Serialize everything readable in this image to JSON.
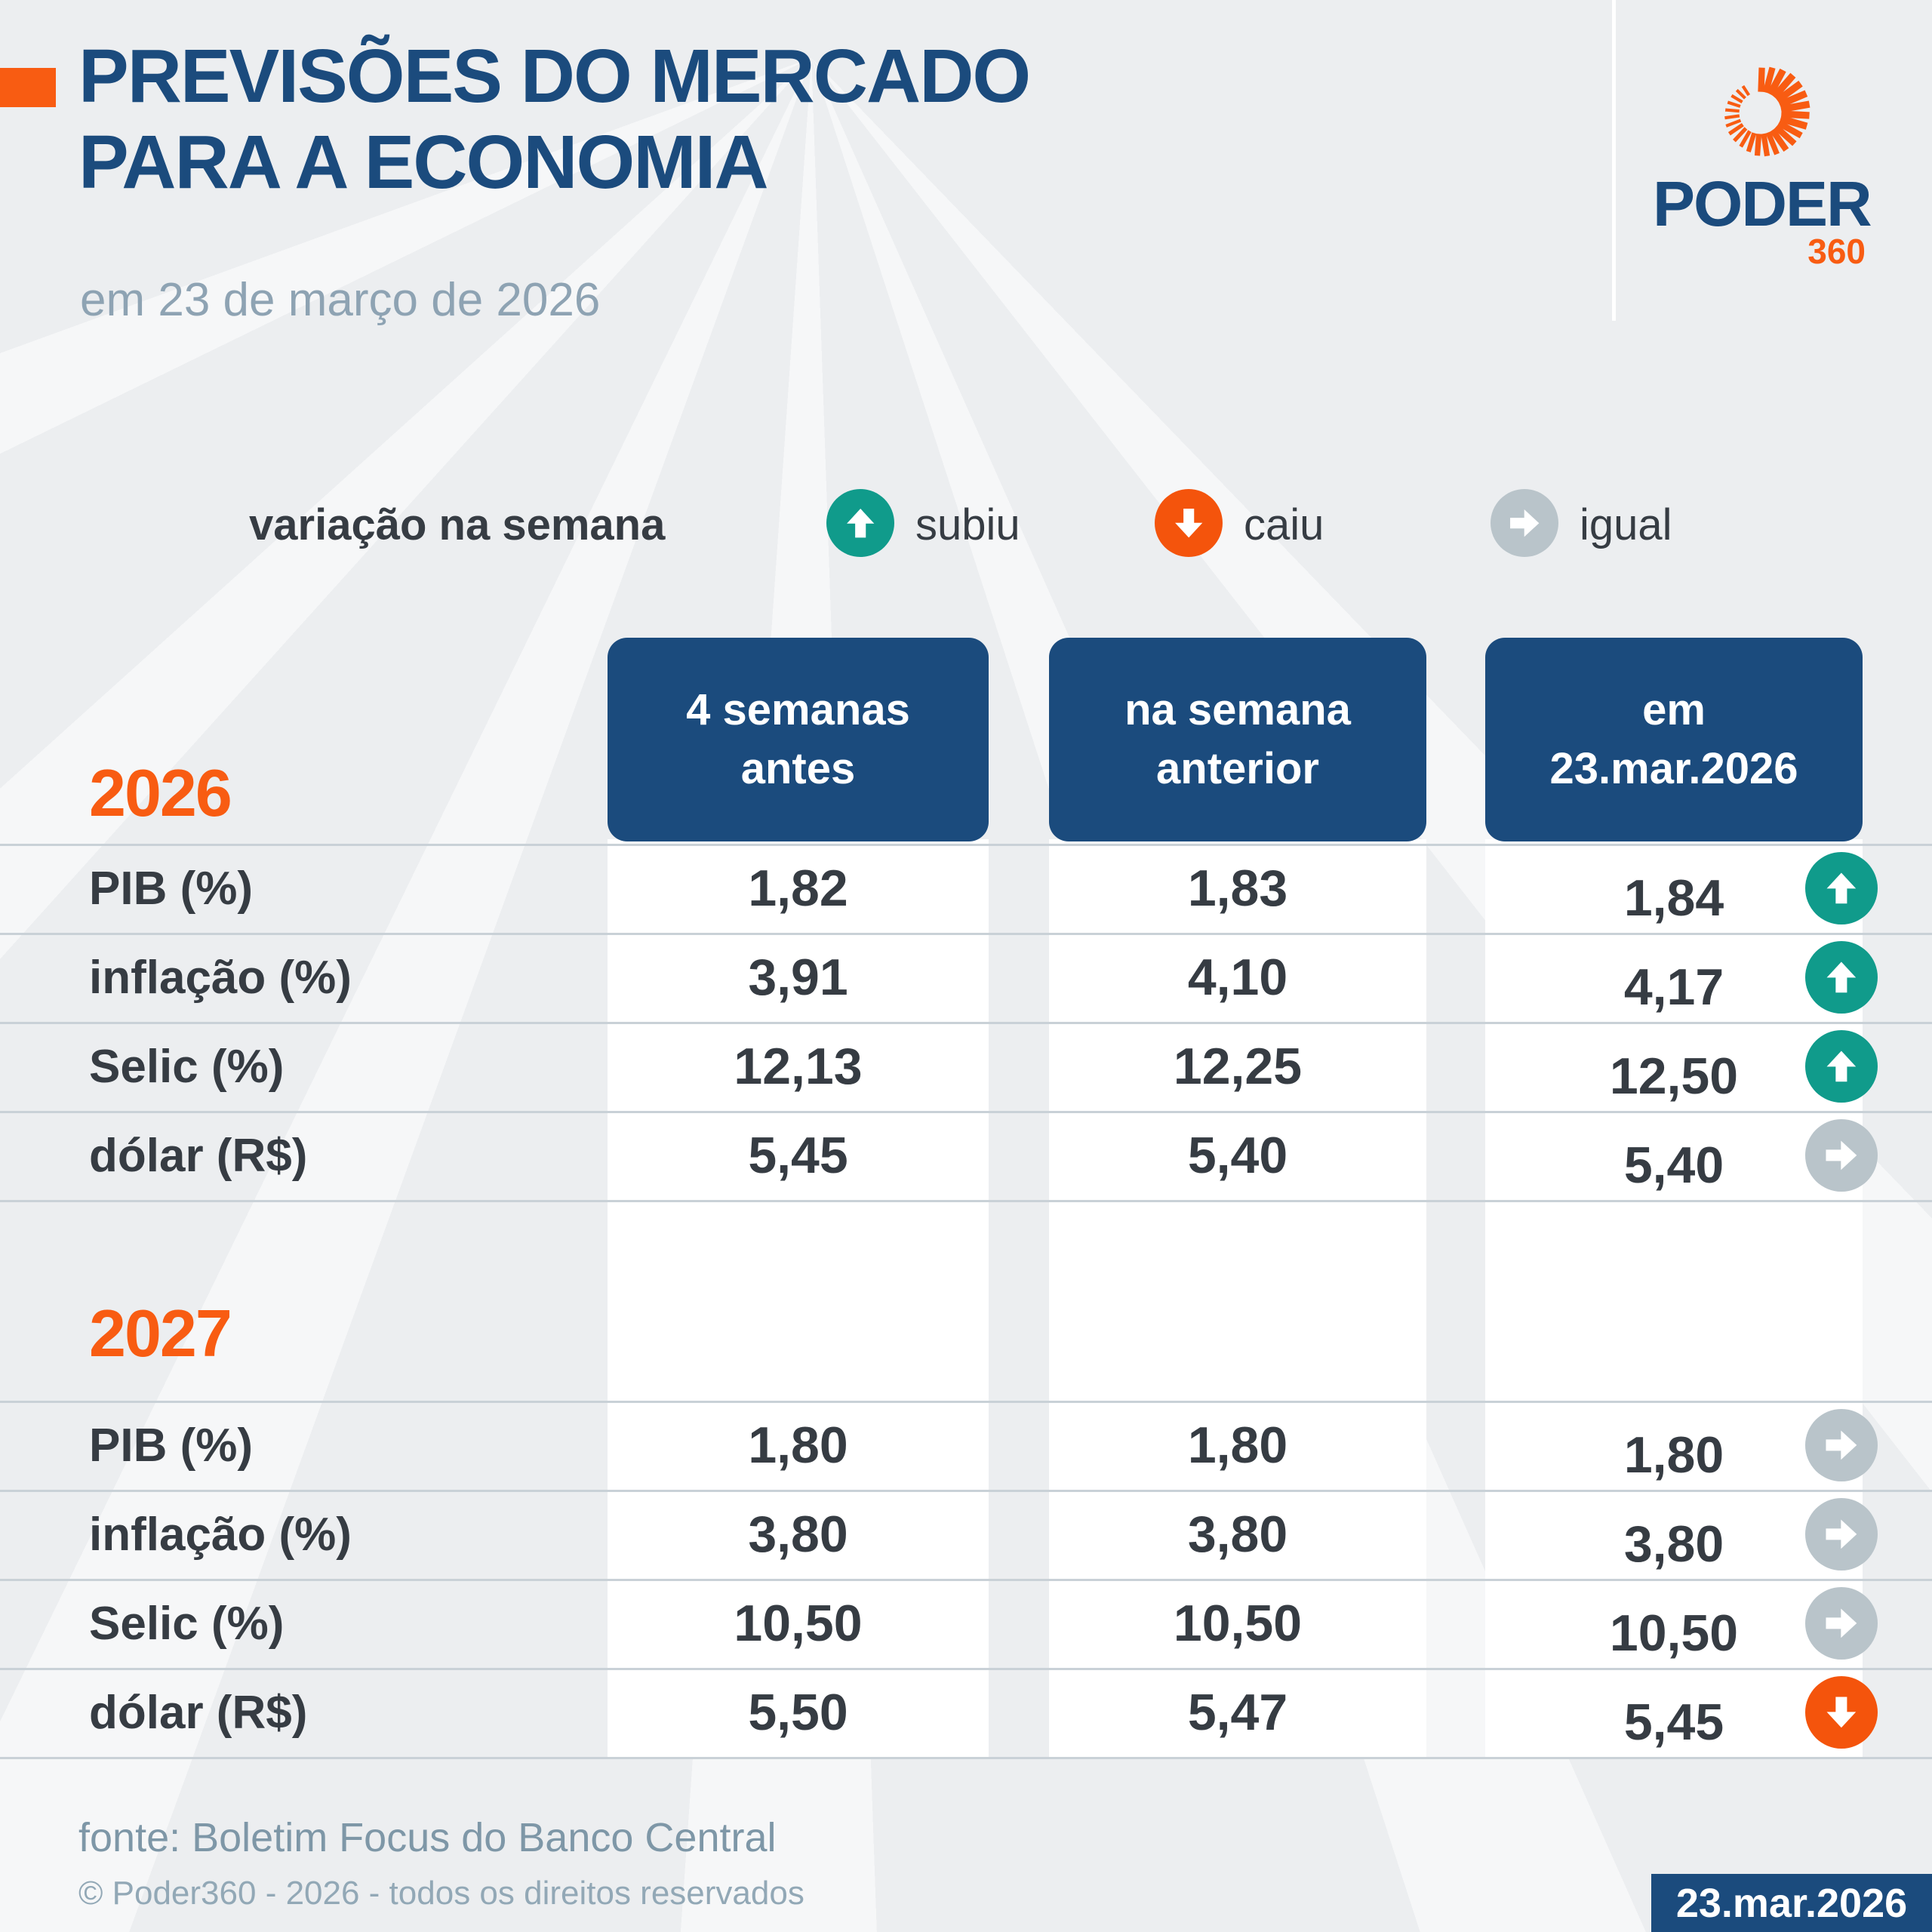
{
  "header": {
    "title_line1": "PREVISÕES DO MERCADO",
    "title_line2": "PARA A ECONOMIA",
    "subtitle": "em 23 de março de 2026",
    "logo": {
      "name": "PODER",
      "suffix": "360"
    }
  },
  "legend": {
    "label": "variação na semana",
    "items": [
      {
        "label": "subiu",
        "direction": "up"
      },
      {
        "label": "caiu",
        "direction": "down"
      },
      {
        "label": "igual",
        "direction": "right"
      }
    ]
  },
  "table": {
    "columns": [
      "4 semanas antes",
      "na semana anterior",
      "em 23.mar.2026"
    ],
    "columns_lines": [
      [
        "4 semanas",
        "antes"
      ],
      [
        "na semana",
        "anterior"
      ],
      [
        "em",
        "23.mar.2026"
      ]
    ],
    "sections": [
      {
        "year": "2026",
        "rows": [
          {
            "label": "PIB (%)",
            "values": [
              "1,82",
              "1,83",
              "1,84"
            ],
            "trend": "up"
          },
          {
            "label": "inflação (%)",
            "values": [
              "3,91",
              "4,10",
              "4,17"
            ],
            "trend": "up"
          },
          {
            "label": "Selic (%)",
            "values": [
              "12,13",
              "12,25",
              "12,50"
            ],
            "trend": "up"
          },
          {
            "label": "dólar (R$)",
            "values": [
              "5,45",
              "5,40",
              "5,40"
            ],
            "trend": "right"
          }
        ]
      },
      {
        "year": "2027",
        "rows": [
          {
            "label": "PIB (%)",
            "values": [
              "1,80",
              "1,80",
              "1,80"
            ],
            "trend": "right"
          },
          {
            "label": "inflação (%)",
            "values": [
              "3,80",
              "3,80",
              "3,80"
            ],
            "trend": "right"
          },
          {
            "label": "Selic (%)",
            "values": [
              "10,50",
              "10,50",
              "10,50"
            ],
            "trend": "right"
          },
          {
            "label": "dólar (R$)",
            "values": [
              "5,50",
              "5,47",
              "5,45"
            ],
            "trend": "down"
          }
        ]
      }
    ]
  },
  "footer": {
    "source": "fonte: Boletim Focus do Banco Central",
    "copyright": "© Poder360 - 2026 - todos os direitos reservados",
    "date_badge": "23.mar.2026"
  },
  "colors": {
    "background": "#ECEEF0",
    "primary_blue": "#1B4B7D",
    "accent_orange": "#F85C12",
    "teal_up": "#109B8B",
    "orange_down": "#F4540C",
    "gray_equal": "#B9C4CA",
    "text_dark": "#363C43",
    "muted_blue_gray": "#8EA3B3"
  },
  "chart_data": {
    "type": "table",
    "title": "PREVISÕES DO MERCADO PARA A ECONOMIA",
    "subtitle": "em 23 de março de 2026",
    "legend": {
      "subiu": "up",
      "caiu": "down",
      "igual": "equal"
    },
    "columns": [
      "4 semanas antes",
      "na semana anterior",
      "em 23.mar.2026"
    ],
    "sections": [
      {
        "year": 2026,
        "rows": [
          {
            "indicator": "PIB (%)",
            "values": [
              1.82,
              1.83,
              1.84
            ],
            "weekly_change": "subiu"
          },
          {
            "indicator": "inflação (%)",
            "values": [
              3.91,
              4.1,
              4.17
            ],
            "weekly_change": "subiu"
          },
          {
            "indicator": "Selic (%)",
            "values": [
              12.13,
              12.25,
              12.5
            ],
            "weekly_change": "subiu"
          },
          {
            "indicator": "dólar (R$)",
            "values": [
              5.45,
              5.4,
              5.4
            ],
            "weekly_change": "igual"
          }
        ]
      },
      {
        "year": 2027,
        "rows": [
          {
            "indicator": "PIB (%)",
            "values": [
              1.8,
              1.8,
              1.8
            ],
            "weekly_change": "igual"
          },
          {
            "indicator": "inflação (%)",
            "values": [
              3.8,
              3.8,
              3.8
            ],
            "weekly_change": "igual"
          },
          {
            "indicator": "Selic (%)",
            "values": [
              10.5,
              10.5,
              10.5
            ],
            "weekly_change": "igual"
          },
          {
            "indicator": "dólar (R$)",
            "values": [
              5.5,
              5.47,
              5.45
            ],
            "weekly_change": "caiu"
          }
        ]
      }
    ],
    "source": "Boletim Focus do Banco Central"
  }
}
